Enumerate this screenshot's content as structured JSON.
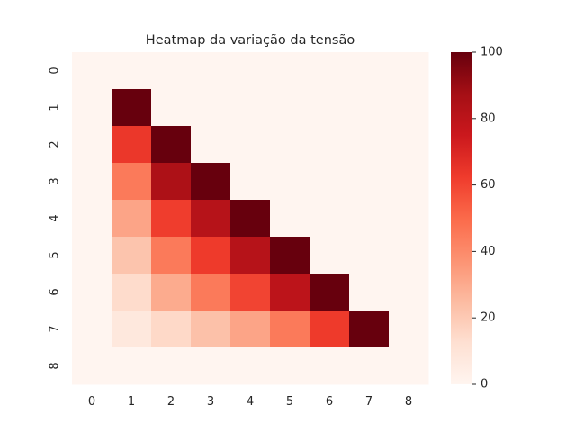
{
  "chart_data": {
    "type": "heatmap",
    "title": "Heatmap da variação da tensão",
    "xlabel": "",
    "ylabel": "",
    "x_categories": [
      "0",
      "1",
      "2",
      "3",
      "4",
      "5",
      "6",
      "7",
      "8"
    ],
    "y_categories": [
      "0",
      "1",
      "2",
      "3",
      "4",
      "5",
      "6",
      "7",
      "8"
    ],
    "values": [
      [
        0,
        0,
        0,
        0,
        0,
        0,
        0,
        0,
        0
      ],
      [
        0,
        100,
        0,
        0,
        0,
        0,
        0,
        0,
        0
      ],
      [
        0,
        64,
        100,
        0,
        0,
        0,
        0,
        0,
        0
      ],
      [
        0,
        45,
        85,
        100,
        0,
        0,
        0,
        0,
        0
      ],
      [
        0,
        32,
        62,
        82,
        100,
        0,
        0,
        0,
        0
      ],
      [
        0,
        22,
        45,
        63,
        82,
        100,
        0,
        0,
        0
      ],
      [
        0,
        14,
        30,
        45,
        60,
        80,
        100,
        0,
        0
      ],
      [
        0,
        8,
        15,
        23,
        32,
        45,
        63,
        100,
        0
      ],
      [
        0,
        0,
        0,
        0,
        0,
        0,
        0,
        0,
        0
      ]
    ],
    "colormap": "Reds",
    "colorbar": {
      "min": 0,
      "max": 100,
      "ticks": [
        0,
        20,
        40,
        60,
        80,
        100
      ]
    },
    "grid": false,
    "colors": {
      "low": "#fff5f0",
      "high": "#67000d"
    }
  }
}
